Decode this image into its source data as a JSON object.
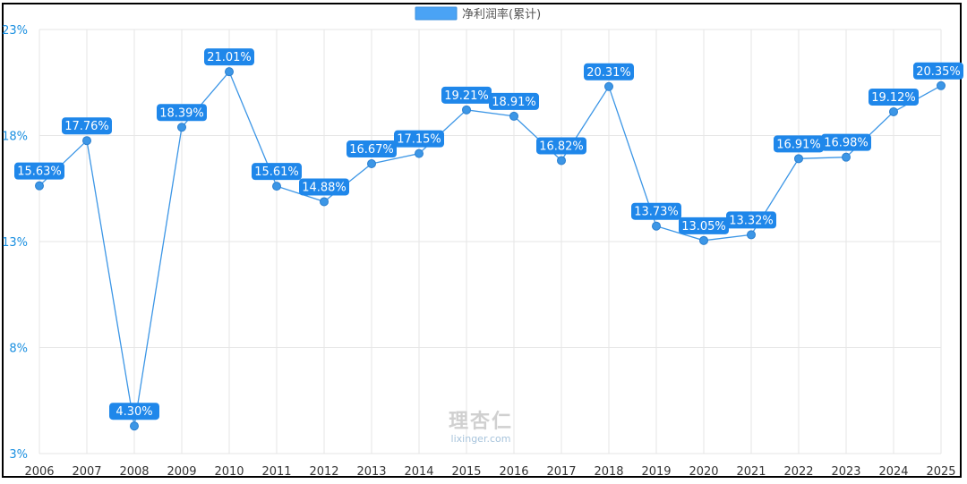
{
  "chart_data": {
    "type": "line",
    "title": "",
    "xlabel": "",
    "ylabel": "",
    "legend": {
      "label": "净利润率(累计)",
      "placement": "top-center",
      "color": "#4aa3f5"
    },
    "ylim": [
      3,
      23
    ],
    "yticks": [
      "3%",
      "8%",
      "13%",
      "18%",
      "23%"
    ],
    "ytick_values": [
      3,
      8,
      13,
      18,
      23
    ],
    "grid": true,
    "line_color": "#3c96e6",
    "label_bg_color": "#1f87ea",
    "categories": [
      "2006",
      "2007",
      "2008",
      "2009",
      "2010",
      "2011",
      "2012",
      "2013",
      "2014",
      "2015",
      "2016",
      "2017",
      "2018",
      "2019",
      "2020",
      "2021",
      "2022",
      "2023",
      "2024",
      "2025"
    ],
    "series": [
      {
        "name": "净利润率(累计)",
        "values": [
          15.63,
          17.76,
          4.3,
          18.39,
          21.01,
          15.61,
          14.88,
          16.67,
          17.15,
          19.21,
          18.91,
          16.82,
          20.31,
          13.73,
          13.05,
          13.32,
          16.91,
          16.98,
          19.12,
          20.35
        ],
        "labels": [
          "15.63%",
          "17.76%",
          "4.30%",
          "18.39%",
          "21.01%",
          "15.61%",
          "14.88%",
          "16.67%",
          "17.15%",
          "19.21%",
          "18.91%",
          "16.82%",
          "20.31%",
          "13.73%",
          "13.05%",
          "13.32%",
          "16.91%",
          "16.98%",
          "19.12%",
          "20.35%"
        ]
      }
    ]
  },
  "watermark": {
    "cn": "理杏仁",
    "en": "lixinger.com"
  }
}
